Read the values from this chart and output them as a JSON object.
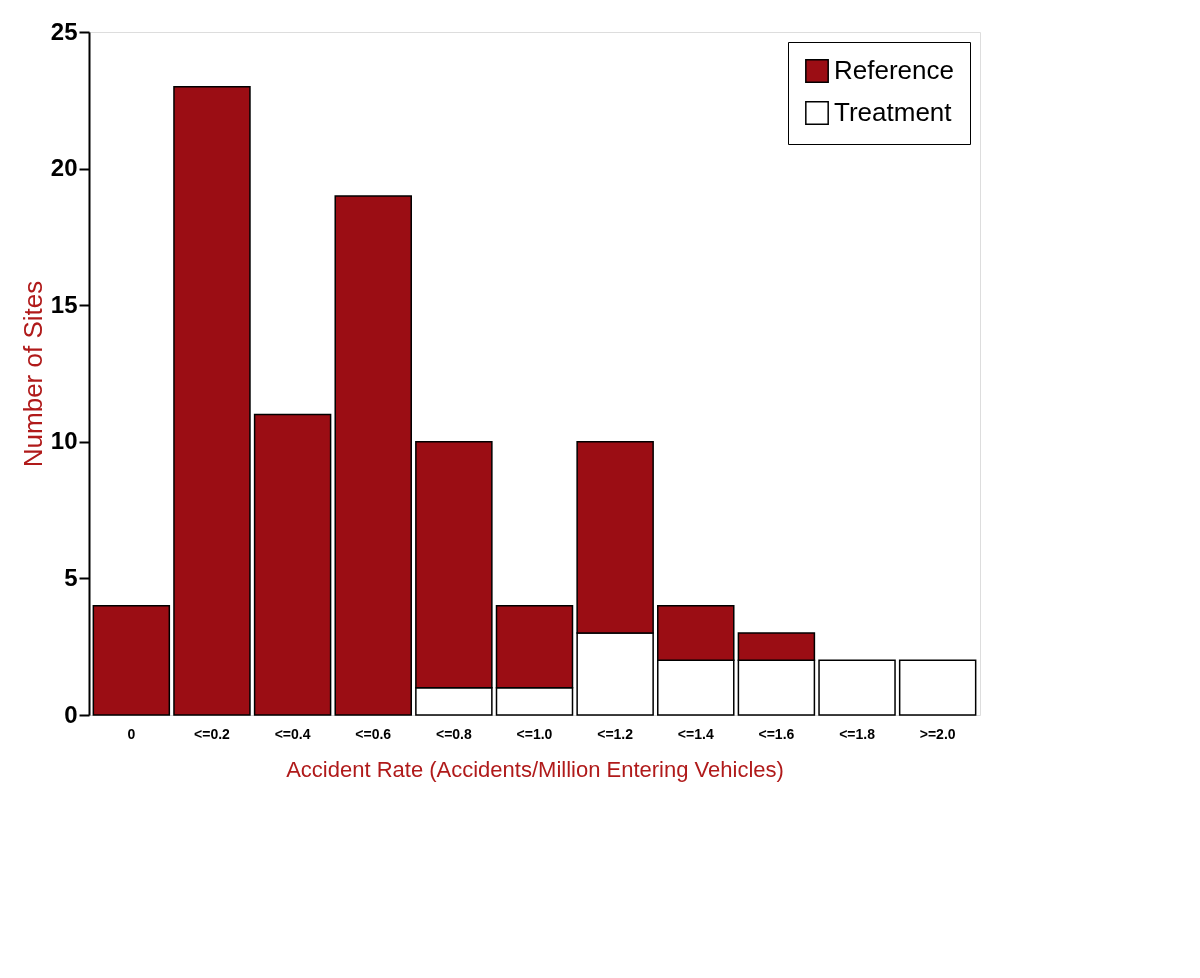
{
  "chart_data": {
    "type": "bar",
    "stacked": true,
    "xlabel": "Accident Rate (Accidents/Million Entering Vehicles)",
    "ylabel": "Number of Sites",
    "categories": [
      "0",
      "<=0.2",
      "<=0.4",
      "<=0.6",
      "<=0.8",
      "<=1.0",
      "<=1.2",
      "<=1.4",
      "<=1.6",
      "<=1.8",
      ">=2.0"
    ],
    "series": [
      {
        "name": "Treatment",
        "color": "#ffffff",
        "values": [
          null,
          null,
          null,
          null,
          1,
          1,
          3,
          2,
          2,
          2,
          2
        ]
      },
      {
        "name": "Reference",
        "color": "#9b0d14",
        "values": [
          4,
          23,
          11,
          19,
          9,
          3,
          7,
          2,
          1,
          null,
          null
        ]
      }
    ],
    "ylim": [
      0,
      25
    ],
    "yticks": [
      0,
      5,
      10,
      15,
      20,
      25
    ],
    "grid": false,
    "legend": "top right"
  }
}
